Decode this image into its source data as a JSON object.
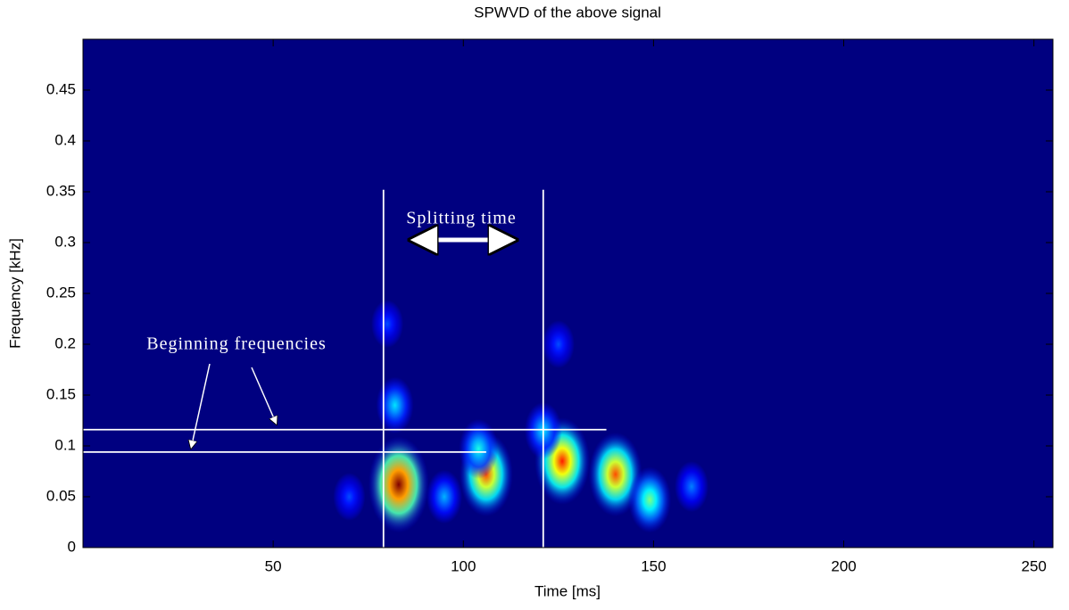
{
  "chart_data": {
    "type": "heatmap",
    "title": "SPWVD of the above signal",
    "x_label": "Time [ms]",
    "y_label": "Frequency [kHz]",
    "xlim": [
      0,
      255
    ],
    "xticks": [
      50,
      100,
      150,
      200,
      250
    ],
    "ylim": [
      0,
      0.5
    ],
    "yticks": [
      0,
      0.05,
      0.1,
      0.15,
      0.2,
      0.25,
      0.3,
      0.35,
      0.4,
      0.45
    ],
    "x": [
      83,
      106,
      126,
      140,
      149,
      104,
      82,
      121,
      95,
      160,
      70,
      125,
      80
    ],
    "y": [
      0.062,
      0.072,
      0.085,
      0.072,
      0.047,
      0.097,
      0.14,
      0.115,
      0.05,
      0.06,
      0.05,
      0.2,
      0.22
    ],
    "values": [
      1.0,
      0.8,
      0.85,
      0.8,
      0.5,
      0.4,
      0.35,
      0.35,
      0.3,
      0.25,
      0.2,
      0.2,
      0.2
    ],
    "vlines": [
      {
        "x": 79,
        "y_end": 0.352
      },
      {
        "x": 121,
        "y_end": 0.352
      }
    ],
    "hlines": [
      {
        "y": 0.116,
        "x_end": 137.6
      },
      {
        "y": 0.094,
        "x_end": 106
      }
    ],
    "annotations": [
      "Splitting time",
      "Beginning frequencies"
    ]
  }
}
